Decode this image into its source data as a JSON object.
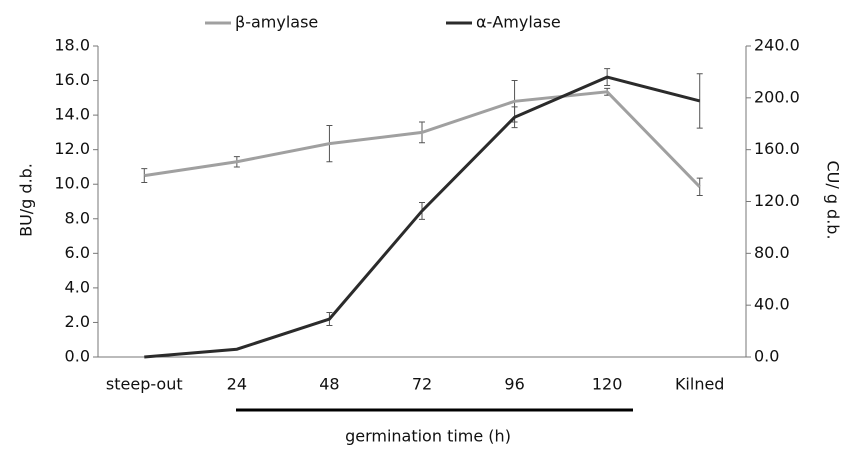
{
  "chart_data": {
    "type": "line",
    "categories": [
      "steep-out",
      "24",
      "48",
      "72",
      "96",
      "120",
      "Kilned"
    ],
    "series": [
      {
        "name": "β-amylase",
        "color": "#a0a0a0",
        "axis": "y",
        "values": [
          10.5,
          11.3,
          12.35,
          13.0,
          14.8,
          15.35,
          9.85
        ],
        "errors": [
          0.4,
          0.3,
          1.05,
          0.6,
          1.2,
          0.2,
          0.5
        ]
      },
      {
        "name": "α-Amylase",
        "color": "#2b2b2b",
        "axis": "y2",
        "values": [
          0,
          6,
          29.3,
          112.7,
          185,
          216,
          197.6
        ],
        "errors": [
          0,
          0,
          5,
          6.5,
          8,
          6.5,
          21
        ]
      }
    ],
    "ylabel": "BU/g d.b.",
    "y2label": "CU/ g d.b.",
    "xlabel": "germination time (h)",
    "ylim": [
      0,
      18
    ],
    "yticks": [
      {
        "value": 0,
        "label": "0.0"
      },
      {
        "value": 2,
        "label": "2.0"
      },
      {
        "value": 4,
        "label": "4.0"
      },
      {
        "value": 6,
        "label": "6.0"
      },
      {
        "value": 8,
        "label": "8.0"
      },
      {
        "value": 10,
        "label": "10.0"
      },
      {
        "value": 12,
        "label": "12.0"
      },
      {
        "value": 14,
        "label": "14.0"
      },
      {
        "value": 16,
        "label": "16.0"
      },
      {
        "value": 18,
        "label": "18.0"
      }
    ],
    "y2lim": [
      0,
      240
    ],
    "y2ticks": [
      {
        "value": 0,
        "label": "0.0"
      },
      {
        "value": 40,
        "label": "40.0"
      },
      {
        "value": 80,
        "label": "80.0"
      },
      {
        "value": 120,
        "label": "120.0"
      },
      {
        "value": 160,
        "label": "160.0"
      },
      {
        "value": 200,
        "label": "200.0"
      },
      {
        "value": 240,
        "label": "240.0"
      }
    ],
    "grid": false,
    "legend": "top"
  }
}
